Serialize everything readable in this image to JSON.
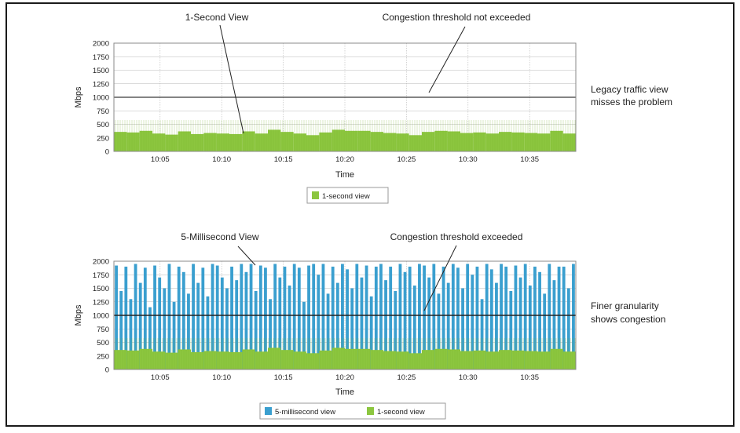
{
  "colors": {
    "border": "#1a1a1a",
    "plot_border": "#8a8a8a",
    "grid": "#b8b8b8",
    "threshold": "#3a3a3a",
    "green": "#8cc63f",
    "blue": "#3a9fcf"
  },
  "chart_data": [
    {
      "type": "bar",
      "annotations": {
        "view_label": "1-Second View",
        "threshold_label": "Congestion threshold not exceeded",
        "side_note_line1": "Legacy traffic view",
        "side_note_line2": "misses the problem"
      },
      "ylabel": "Mbps",
      "xlabel": "Time",
      "yticks": [
        "0",
        "250",
        "500",
        "750",
        "1000",
        "1250",
        "1500",
        "1750",
        "2000"
      ],
      "xticks": [
        "10:05",
        "10:10",
        "10:15",
        "10:20",
        "10:25",
        "10:30",
        "10:35"
      ],
      "ylim": [
        0,
        2000
      ],
      "threshold": 1000,
      "grid": true,
      "series": [
        {
          "name": "1-second view",
          "color": "#8cc63f",
          "values": [
            360,
            350,
            380,
            330,
            310,
            370,
            320,
            340,
            330,
            320,
            370,
            330,
            400,
            360,
            330,
            300,
            350,
            400,
            380,
            380,
            360,
            340,
            330,
            300,
            360,
            380,
            370,
            340,
            350,
            330,
            360,
            350,
            340,
            330,
            380,
            330
          ]
        }
      ],
      "legend": {
        "position": "bottom",
        "items": [
          "1-second view"
        ]
      }
    },
    {
      "type": "bar",
      "annotations": {
        "view_label": "5-Millisecond View",
        "threshold_label": "Congestion threshold exceeded",
        "side_note_line1": "Finer granularity",
        "side_note_line2": "shows congestion"
      },
      "ylabel": "Mbps",
      "xlabel": "Time",
      "yticks": [
        "0",
        "250",
        "500",
        "750",
        "1000",
        "1250",
        "1500",
        "1750",
        "2000"
      ],
      "xticks": [
        "10:05",
        "10:10",
        "10:15",
        "10:20",
        "10:25",
        "10:30",
        "10:35"
      ],
      "ylim": [
        0,
        2000
      ],
      "threshold": 1000,
      "grid": true,
      "series": [
        {
          "name": "5-millisecond view",
          "color": "#3a9fcf",
          "values": [
            1920,
            1450,
            1900,
            1300,
            1950,
            1600,
            1880,
            1150,
            1920,
            1700,
            1500,
            1950,
            1250,
            1900,
            1800,
            1400,
            1950,
            1600,
            1880,
            1350,
            1950,
            1920,
            1700,
            1500,
            1900,
            1650,
            1950,
            1800,
            1950,
            1450,
            1920,
            1880,
            1300,
            1950,
            1700,
            1900,
            1550,
            1950,
            1880,
            1250,
            1920,
            1950,
            1750,
            1950,
            1400,
            1900,
            1600,
            1950,
            1850,
            1500,
            1950,
            1700,
            1920,
            1350,
            1900,
            1950,
            1650,
            1900,
            1450,
            1950,
            1800,
            1900,
            1550,
            1950,
            1920,
            1700,
            1950,
            1400,
            1900,
            1600,
            1950,
            1880,
            1500,
            1950,
            1750,
            1900,
            1300,
            1950,
            1850,
            1600,
            1950,
            1900,
            1450,
            1920,
            1700,
            1950,
            1550,
            1900,
            1800,
            1400,
            1950,
            1650,
            1900,
            1900,
            1500,
            1950
          ]
        },
        {
          "name": "1-second view",
          "color": "#8cc63f",
          "values": [
            360,
            350,
            380,
            330,
            310,
            370,
            320,
            340,
            330,
            320,
            370,
            330,
            400,
            360,
            330,
            300,
            350,
            400,
            380,
            380,
            360,
            340,
            330,
            300,
            360,
            380,
            370,
            340,
            350,
            330,
            360,
            350,
            340,
            330,
            380,
            330
          ]
        }
      ],
      "legend": {
        "position": "bottom",
        "items": [
          "5-millisecond view",
          "1-second view"
        ]
      }
    }
  ]
}
